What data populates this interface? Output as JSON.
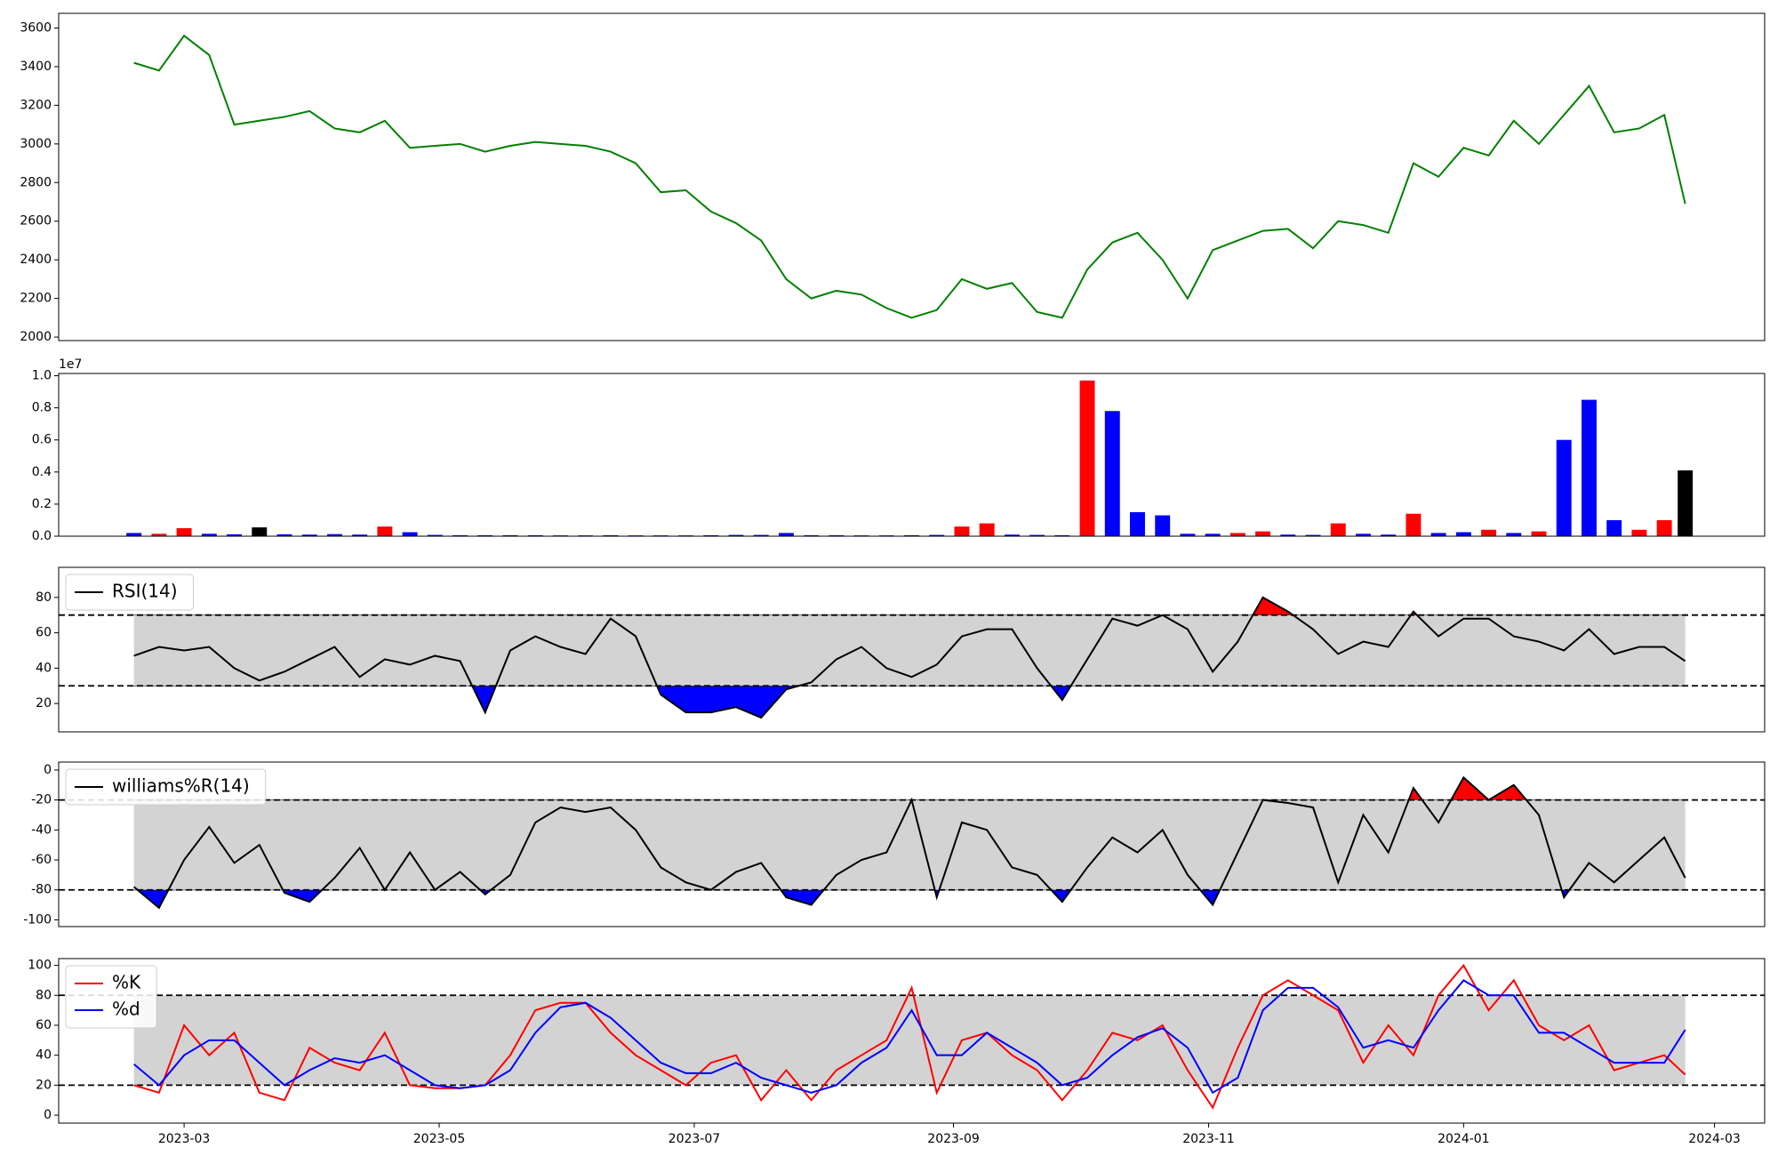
{
  "chart_data": [
    {
      "type": "line",
      "x": [
        18,
        24,
        30,
        36,
        42,
        48,
        54,
        60,
        66,
        72,
        78,
        84,
        90,
        96,
        102,
        108,
        114,
        120,
        126,
        132,
        138,
        144,
        150,
        156,
        162,
        168,
        174,
        180,
        186,
        192,
        198,
        204,
        210,
        216,
        222,
        228,
        234,
        240,
        246,
        252,
        258,
        264,
        270,
        276,
        282,
        288,
        294,
        300,
        306,
        312,
        318,
        324,
        330,
        336,
        342,
        348,
        354,
        360,
        366,
        372,
        378,
        384,
        389
      ],
      "xlim": [
        0,
        408
      ],
      "ylim": [
        1982,
        3676
      ],
      "yticks": [
        2000,
        2200,
        2400,
        2600,
        2800,
        3000,
        3200,
        3400,
        3600
      ],
      "series": [
        {
          "color": "#008000",
          "values": [
            3420,
            3380,
            3560,
            3460,
            3100,
            3120,
            3140,
            3170,
            3080,
            3060,
            3120,
            2980,
            2990,
            3000,
            2960,
            2990,
            3010,
            3000,
            2990,
            2960,
            2900,
            2750,
            2760,
            2650,
            2590,
            2500,
            2300,
            2200,
            2240,
            2220,
            2150,
            2100,
            2140,
            2300,
            2250,
            2280,
            2130,
            2100,
            2350,
            2490,
            2540,
            2400,
            2200,
            2450,
            2500,
            2550,
            2560,
            2460,
            2600,
            2580,
            2540,
            2900,
            2830,
            2980,
            2940,
            3120,
            3000,
            3150,
            3300,
            3060,
            3080,
            3150,
            2690
          ]
        }
      ]
    },
    {
      "type": "bar",
      "x": [
        18,
        24,
        30,
        36,
        42,
        48,
        54,
        60,
        66,
        72,
        78,
        84,
        90,
        96,
        102,
        108,
        114,
        120,
        126,
        132,
        138,
        144,
        150,
        156,
        162,
        168,
        174,
        180,
        186,
        192,
        198,
        204,
        210,
        216,
        222,
        228,
        234,
        240,
        246,
        252,
        258,
        264,
        270,
        276,
        282,
        288,
        294,
        300,
        306,
        312,
        318,
        324,
        330,
        336,
        342,
        348,
        354,
        360,
        366,
        372,
        378,
        384,
        389
      ],
      "xlim": [
        0,
        408
      ],
      "ylim": [
        0,
        10140000
      ],
      "yticks": [
        {
          "value": 0,
          "label": "0.0"
        },
        {
          "value": 2000000,
          "label": "0.2"
        },
        {
          "value": 4000000,
          "label": "0.4"
        },
        {
          "value": 6000000,
          "label": "0.6"
        },
        {
          "value": 8000000,
          "label": "0.8"
        },
        {
          "value": 10000000,
          "label": "1.0"
        }
      ],
      "y_offset_label": "1e7",
      "values": [
        200000,
        150000,
        500000,
        150000,
        120000,
        550000,
        120000,
        100000,
        130000,
        100000,
        600000,
        250000,
        80000,
        60000,
        60000,
        60000,
        60000,
        50000,
        50000,
        60000,
        50000,
        50000,
        50000,
        60000,
        80000,
        80000,
        200000,
        60000,
        60000,
        50000,
        50000,
        60000,
        80000,
        600000,
        800000,
        100000,
        80000,
        60000,
        9700000,
        7800000,
        1500000,
        1300000,
        150000,
        150000,
        200000,
        300000,
        100000,
        80000,
        800000,
        150000,
        100000,
        1400000,
        200000,
        250000,
        400000,
        200000,
        300000,
        6000000,
        8500000,
        1000000,
        400000,
        1000000,
        4100000
      ],
      "colors": [
        "blue",
        "red",
        "red",
        "blue",
        "blue",
        "black",
        "blue",
        "blue",
        "blue",
        "blue",
        "red",
        "blue",
        "blue",
        "blue",
        "blue",
        "blue",
        "blue",
        "blue",
        "blue",
        "blue",
        "blue",
        "blue",
        "blue",
        "blue",
        "blue",
        "blue",
        "blue",
        "blue",
        "blue",
        "blue",
        "blue",
        "blue",
        "blue",
        "red",
        "red",
        "blue",
        "blue",
        "blue",
        "red",
        "blue",
        "blue",
        "blue",
        "blue",
        "blue",
        "red",
        "red",
        "blue",
        "blue",
        "red",
        "blue",
        "blue",
        "red",
        "blue",
        "blue",
        "red",
        "blue",
        "red",
        "blue",
        "blue",
        "blue",
        "red",
        "red",
        "black"
      ]
    },
    {
      "type": "line",
      "x": [
        18,
        24,
        30,
        36,
        42,
        48,
        54,
        60,
        66,
        72,
        78,
        84,
        90,
        96,
        102,
        108,
        114,
        120,
        126,
        132,
        138,
        144,
        150,
        156,
        162,
        168,
        174,
        180,
        186,
        192,
        198,
        204,
        210,
        216,
        222,
        228,
        234,
        240,
        246,
        252,
        258,
        264,
        270,
        276,
        282,
        288,
        294,
        300,
        306,
        312,
        318,
        324,
        330,
        336,
        342,
        348,
        354,
        360,
        366,
        372,
        378,
        384,
        389
      ],
      "xlim": [
        0,
        408
      ],
      "ylim": [
        4,
        97
      ],
      "yticks": [
        20,
        40,
        60,
        80
      ],
      "thresholds": [
        30,
        70
      ],
      "band_color": "lightgray",
      "fill_below": "blue",
      "fill_above": "red",
      "legend": "upper left",
      "series": [
        {
          "name": "RSI(14)",
          "color": "black",
          "values": [
            47,
            52,
            50,
            52,
            40,
            33,
            38,
            45,
            52,
            35,
            45,
            42,
            47,
            44,
            15,
            50,
            58,
            52,
            48,
            68,
            58,
            25,
            15,
            15,
            18,
            12,
            28,
            32,
            45,
            52,
            40,
            35,
            42,
            58,
            62,
            62,
            40,
            22,
            45,
            68,
            64,
            70,
            62,
            38,
            55,
            80,
            72,
            62,
            48,
            55,
            52,
            72,
            58,
            68,
            68,
            58,
            55,
            50,
            62,
            48,
            52,
            52,
            44
          ]
        }
      ]
    },
    {
      "type": "line",
      "x": [
        18,
        24,
        30,
        36,
        42,
        48,
        54,
        60,
        66,
        72,
        78,
        84,
        90,
        96,
        102,
        108,
        114,
        120,
        126,
        132,
        138,
        144,
        150,
        156,
        162,
        168,
        174,
        180,
        186,
        192,
        198,
        204,
        210,
        216,
        222,
        228,
        234,
        240,
        246,
        252,
        258,
        264,
        270,
        276,
        282,
        288,
        294,
        300,
        306,
        312,
        318,
        324,
        330,
        336,
        342,
        348,
        354,
        360,
        366,
        372,
        378,
        384,
        389
      ],
      "xlim": [
        0,
        408
      ],
      "ylim": [
        -104.5,
        5.3
      ],
      "yticks": [
        -100,
        -80,
        -60,
        -40,
        -20,
        0
      ],
      "thresholds": [
        -80,
        -20
      ],
      "band_color": "lightgray",
      "fill_below": "blue",
      "fill_above": "red",
      "legend": "upper left",
      "series": [
        {
          "name": "williams%R(14)",
          "color": "black",
          "values": [
            -78,
            -92,
            -60,
            -38,
            -62,
            -50,
            -82,
            -88,
            -72,
            -52,
            -80,
            -55,
            -80,
            -68,
            -83,
            -70,
            -35,
            -25,
            -28,
            -25,
            -40,
            -65,
            -75,
            -80,
            -68,
            -62,
            -85,
            -90,
            -70,
            -60,
            -55,
            -20,
            -85,
            -35,
            -40,
            -65,
            -70,
            -88,
            -65,
            -45,
            -55,
            -40,
            -70,
            -90,
            -55,
            -20,
            -22,
            -25,
            -75,
            -30,
            -55,
            -12,
            -35,
            -5,
            -20,
            -10,
            -30,
            -85,
            -62,
            -75,
            -60,
            -45,
            -72
          ]
        }
      ]
    },
    {
      "type": "line",
      "x": [
        18,
        24,
        30,
        36,
        42,
        48,
        54,
        60,
        66,
        72,
        78,
        84,
        90,
        96,
        102,
        108,
        114,
        120,
        126,
        132,
        138,
        144,
        150,
        156,
        162,
        168,
        174,
        180,
        186,
        192,
        198,
        204,
        210,
        216,
        222,
        228,
        234,
        240,
        246,
        252,
        258,
        264,
        270,
        276,
        282,
        288,
        294,
        300,
        306,
        312,
        318,
        324,
        330,
        336,
        342,
        348,
        354,
        360,
        366,
        372,
        378,
        384,
        389
      ],
      "xlim": [
        0,
        408
      ],
      "xticks": [
        {
          "value": 30,
          "label": "2023-03"
        },
        {
          "value": 91,
          "label": "2023-05"
        },
        {
          "value": 152,
          "label": "2023-07"
        },
        {
          "value": 214,
          "label": "2023-09"
        },
        {
          "value": 275,
          "label": "2023-11"
        },
        {
          "value": 336,
          "label": "2024-01"
        },
        {
          "value": 396,
          "label": "2024-03"
        }
      ],
      "ylim": [
        -5.3,
        104.5
      ],
      "yticks": [
        0,
        20,
        40,
        60,
        80,
        100
      ],
      "thresholds": [
        20,
        80
      ],
      "band_color": "lightgray",
      "legend": "upper left",
      "series": [
        {
          "name": "%K",
          "color": "red",
          "values": [
            20,
            15,
            60,
            40,
            55,
            15,
            10,
            45,
            35,
            30,
            55,
            20,
            18,
            18,
            20,
            40,
            70,
            75,
            75,
            55,
            40,
            30,
            20,
            35,
            40,
            10,
            30,
            10,
            30,
            40,
            50,
            85,
            15,
            50,
            55,
            40,
            30,
            10,
            30,
            55,
            50,
            60,
            30,
            5,
            45,
            80,
            90,
            80,
            70,
            35,
            60,
            40,
            80,
            100,
            70,
            90,
            60,
            50,
            60,
            30,
            35,
            40,
            27
          ]
        },
        {
          "name": "%d",
          "color": "blue",
          "values": [
            34,
            20,
            40,
            50,
            50,
            35,
            20,
            30,
            38,
            35,
            40,
            30,
            20,
            18,
            20,
            30,
            55,
            72,
            75,
            65,
            50,
            35,
            28,
            28,
            35,
            25,
            20,
            15,
            20,
            35,
            45,
            70,
            40,
            40,
            55,
            45,
            35,
            20,
            25,
            40,
            52,
            58,
            45,
            15,
            25,
            70,
            85,
            85,
            72,
            45,
            50,
            45,
            70,
            90,
            80,
            80,
            55,
            55,
            45,
            35,
            35,
            35,
            57
          ]
        }
      ]
    }
  ]
}
